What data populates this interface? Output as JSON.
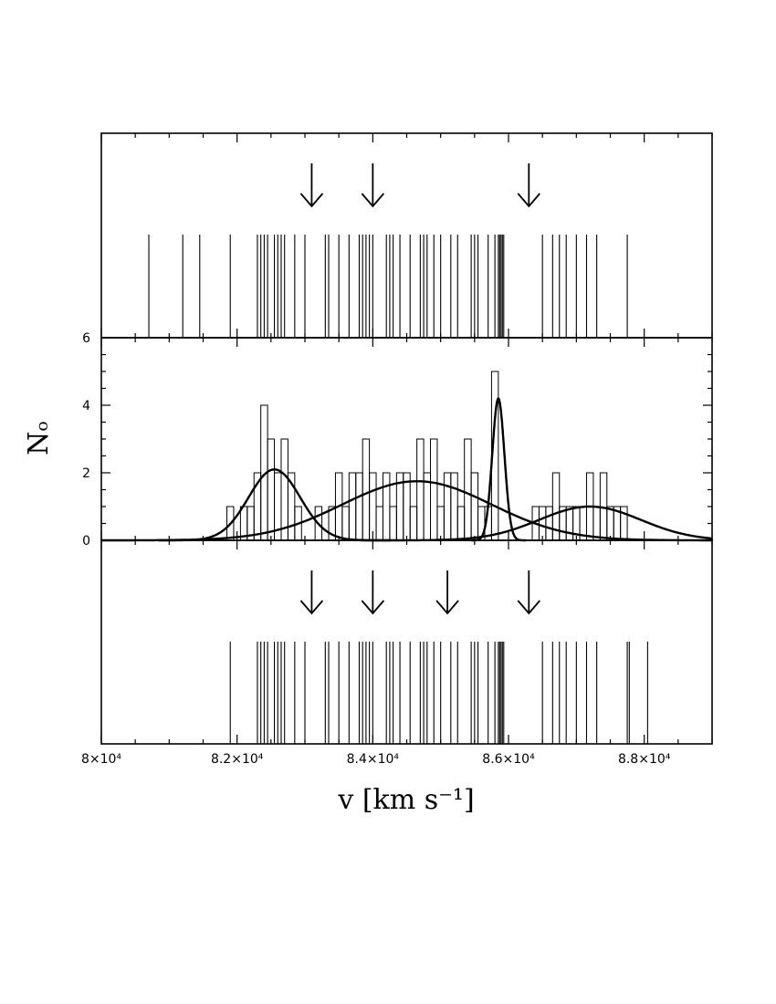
{
  "chart_data": {
    "type": "histogram",
    "title": "",
    "xlabel": "v [km s⁻¹]",
    "x_tick_labels": [
      "8×10⁴",
      "8.2×10⁴",
      "8.4×10⁴",
      "8.6×10⁴",
      "8.8×10⁴"
    ],
    "x_ticks": [
      80000,
      82000,
      84000,
      86000,
      88000
    ],
    "xlim": [
      80000,
      89000
    ],
    "panels": [
      {
        "name": "top",
        "kind": "velocity-ticks",
        "arrows": [
          83100,
          84000,
          86300
        ],
        "velocities": [
          80700,
          81200,
          81450,
          81900,
          82300,
          82350,
          82400,
          82450,
          82550,
          82600,
          82650,
          82700,
          82850,
          83000,
          83300,
          83350,
          83500,
          83650,
          83800,
          83850,
          83900,
          83950,
          84000,
          84200,
          84250,
          84300,
          84400,
          84550,
          84700,
          84750,
          84800,
          84900,
          85000,
          85150,
          85250,
          85450,
          85500,
          85550,
          85700,
          85800,
          85850,
          85870,
          85890,
          85910,
          85930,
          86500,
          86650,
          86750,
          86850,
          87000,
          87150,
          87300,
          87750
        ]
      },
      {
        "name": "middle",
        "kind": "histogram-with-gaussians",
        "ylabel": "Nₒ",
        "y_tick_labels": [
          "0",
          "2",
          "4",
          "6"
        ],
        "y_ticks": [
          0,
          2,
          4,
          6
        ],
        "ylim": [
          0,
          6
        ],
        "bin_width": 100,
        "bins": [
          {
            "x": 81800,
            "count": 0
          },
          {
            "x": 81900,
            "count": 1
          },
          {
            "x": 82000,
            "count": 0
          },
          {
            "x": 82100,
            "count": 1
          },
          {
            "x": 82200,
            "count": 1
          },
          {
            "x": 82300,
            "count": 2
          },
          {
            "x": 82400,
            "count": 4
          },
          {
            "x": 82500,
            "count": 3
          },
          {
            "x": 82600,
            "count": 2
          },
          {
            "x": 82700,
            "count": 3
          },
          {
            "x": 82800,
            "count": 2
          },
          {
            "x": 82900,
            "count": 1
          },
          {
            "x": 83000,
            "count": 0
          },
          {
            "x": 83100,
            "count": 0
          },
          {
            "x": 83200,
            "count": 1
          },
          {
            "x": 83300,
            "count": 0
          },
          {
            "x": 83400,
            "count": 1
          },
          {
            "x": 83500,
            "count": 2
          },
          {
            "x": 83600,
            "count": 1
          },
          {
            "x": 83700,
            "count": 2
          },
          {
            "x": 83800,
            "count": 2
          },
          {
            "x": 83900,
            "count": 3
          },
          {
            "x": 84000,
            "count": 2
          },
          {
            "x": 84100,
            "count": 1
          },
          {
            "x": 84200,
            "count": 2
          },
          {
            "x": 84300,
            "count": 1
          },
          {
            "x": 84400,
            "count": 2
          },
          {
            "x": 84500,
            "count": 2
          },
          {
            "x": 84600,
            "count": 1
          },
          {
            "x": 84700,
            "count": 3
          },
          {
            "x": 84800,
            "count": 2
          },
          {
            "x": 84900,
            "count": 3
          },
          {
            "x": 85000,
            "count": 1
          },
          {
            "x": 85100,
            "count": 2
          },
          {
            "x": 85200,
            "count": 2
          },
          {
            "x": 85300,
            "count": 1
          },
          {
            "x": 85400,
            "count": 3
          },
          {
            "x": 85500,
            "count": 2
          },
          {
            "x": 85600,
            "count": 1
          },
          {
            "x": 85700,
            "count": 1
          },
          {
            "x": 85800,
            "count": 5
          },
          {
            "x": 85900,
            "count": 0
          },
          {
            "x": 86000,
            "count": 0
          },
          {
            "x": 86100,
            "count": 0
          },
          {
            "x": 86200,
            "count": 0
          },
          {
            "x": 86300,
            "count": 0
          },
          {
            "x": 86400,
            "count": 1
          },
          {
            "x": 86500,
            "count": 1
          },
          {
            "x": 86600,
            "count": 1
          },
          {
            "x": 86700,
            "count": 2
          },
          {
            "x": 86800,
            "count": 1
          },
          {
            "x": 86900,
            "count": 1
          },
          {
            "x": 87000,
            "count": 1
          },
          {
            "x": 87100,
            "count": 1
          },
          {
            "x": 87200,
            "count": 2
          },
          {
            "x": 87300,
            "count": 1
          },
          {
            "x": 87400,
            "count": 2
          },
          {
            "x": 87500,
            "count": 1
          },
          {
            "x": 87600,
            "count": 1
          },
          {
            "x": 87700,
            "count": 1
          },
          {
            "x": 87800,
            "count": 0
          }
        ],
        "gaussians": [
          {
            "amplitude": 2.1,
            "mean": 82550,
            "sigma": 380
          },
          {
            "amplitude": 1.75,
            "mean": 84650,
            "sigma": 1100
          },
          {
            "amplitude": 4.2,
            "mean": 85850,
            "sigma": 90
          },
          {
            "amplitude": 1.0,
            "mean": 87200,
            "sigma": 750
          }
        ]
      },
      {
        "name": "bottom",
        "kind": "velocity-ticks",
        "arrows": [
          83100,
          84000,
          85100,
          86300
        ],
        "velocities": [
          81900,
          82300,
          82350,
          82400,
          82450,
          82550,
          82600,
          82650,
          82700,
          82850,
          83000,
          83300,
          83350,
          83500,
          83650,
          83800,
          83850,
          83900,
          83950,
          84000,
          84200,
          84250,
          84300,
          84400,
          84550,
          84700,
          84750,
          84800,
          84900,
          85000,
          85150,
          85250,
          85450,
          85500,
          85550,
          85700,
          85800,
          85850,
          85870,
          85890,
          85910,
          85930,
          86500,
          86650,
          86750,
          86850,
          87000,
          87150,
          87300,
          87750,
          87780,
          88050
        ]
      }
    ]
  }
}
